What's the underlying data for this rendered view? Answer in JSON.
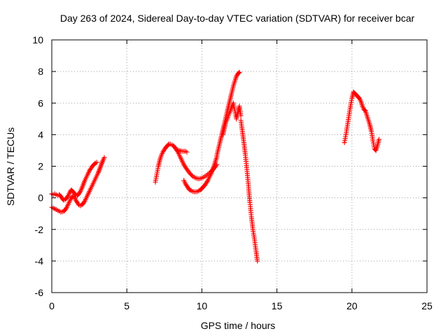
{
  "chart_data": {
    "type": "scatter",
    "title": "Day 263 of 2024, Sidereal Day-to-day VTEC variation (SDTVAR) for receiver bcar",
    "xlabel": "GPS time / hours",
    "ylabel": "SDTVAR / TECUs",
    "xlim": [
      0,
      25
    ],
    "ylim": [
      -6,
      10
    ],
    "xticks": [
      0,
      5,
      10,
      15,
      20,
      25
    ],
    "yticks": [
      -6,
      -4,
      -2,
      0,
      2,
      4,
      6,
      8,
      10
    ],
    "grid": true,
    "marker": "+",
    "color": "#ff0000",
    "series": [
      {
        "name": "segment-1-upper",
        "x": [
          0.0,
          0.1,
          0.2,
          0.3,
          0.4,
          0.5,
          0.6,
          0.7,
          0.8,
          0.9,
          1.0,
          1.1,
          1.2,
          1.3,
          1.4,
          1.5,
          1.6,
          1.7,
          1.8,
          1.9,
          2.0,
          2.1,
          2.2,
          2.3,
          2.4,
          2.5,
          2.6,
          2.7,
          2.8,
          2.9,
          3.0
        ],
        "y": [
          0.25,
          0.2,
          0.25,
          0.2,
          0.15,
          0.2,
          0.1,
          -0.05,
          -0.15,
          -0.1,
          0.0,
          0.15,
          0.35,
          0.5,
          0.4,
          0.3,
          0.15,
          0.15,
          0.25,
          0.4,
          0.6,
          0.85,
          1.1,
          1.3,
          1.5,
          1.7,
          1.85,
          2.0,
          2.1,
          2.2,
          2.25
        ]
      },
      {
        "name": "segment-1-lower",
        "x": [
          0.0,
          0.1,
          0.2,
          0.3,
          0.4,
          0.5,
          0.6,
          0.7,
          0.8,
          0.9,
          1.0,
          1.1,
          1.2,
          1.3,
          1.4,
          1.5,
          1.6,
          1.7,
          1.8,
          1.9,
          2.0,
          2.1,
          2.2,
          2.3,
          2.4,
          2.5,
          2.6,
          2.7,
          2.8,
          2.9,
          3.0,
          3.1,
          3.2,
          3.3,
          3.4,
          3.5
        ],
        "y": [
          -0.6,
          -0.65,
          -0.7,
          -0.75,
          -0.8,
          -0.85,
          -0.9,
          -0.88,
          -0.85,
          -0.75,
          -0.6,
          -0.4,
          -0.2,
          0.0,
          0.1,
          0.05,
          -0.15,
          -0.3,
          -0.45,
          -0.5,
          -0.45,
          -0.35,
          -0.2,
          0.0,
          0.2,
          0.4,
          0.6,
          0.8,
          1.0,
          1.2,
          1.4,
          1.6,
          1.85,
          2.1,
          2.35,
          2.55
        ]
      },
      {
        "name": "segment-2-upper",
        "x": [
          6.9,
          7.0,
          7.1,
          7.2,
          7.3,
          7.4,
          7.5,
          7.6,
          7.7,
          7.8,
          7.9,
          8.0,
          8.1,
          8.2,
          8.3,
          8.4,
          8.5,
          8.6,
          8.7,
          8.8,
          8.9,
          9.0,
          9.2,
          9.4,
          9.6,
          9.8,
          10.0,
          10.2,
          10.4,
          10.6,
          10.8,
          11.0
        ],
        "y": [
          1.0,
          1.5,
          2.0,
          2.4,
          2.7,
          2.9,
          3.05,
          3.2,
          3.3,
          3.4,
          3.4,
          3.35,
          3.3,
          3.2,
          3.05,
          2.9,
          2.7,
          2.5,
          2.3,
          2.1,
          1.95,
          1.8,
          1.55,
          1.35,
          1.25,
          1.2,
          1.25,
          1.35,
          1.5,
          1.65,
          1.85,
          2.1
        ]
      },
      {
        "name": "segment-2-tail",
        "x": [
          8.3,
          8.5,
          8.7,
          8.9,
          9.0
        ],
        "y": [
          3.05,
          3.0,
          2.95,
          2.95,
          2.9
        ]
      },
      {
        "name": "segment-2-lower",
        "x": [
          8.8,
          8.9,
          9.0,
          9.1,
          9.2,
          9.3,
          9.4,
          9.5,
          9.6,
          9.7,
          9.8,
          9.9,
          10.0,
          10.1,
          10.2,
          10.3,
          10.4,
          10.5,
          10.6,
          10.7,
          10.8,
          10.9,
          11.0
        ],
        "y": [
          1.1,
          0.9,
          0.75,
          0.6,
          0.5,
          0.45,
          0.4,
          0.38,
          0.38,
          0.4,
          0.45,
          0.5,
          0.6,
          0.7,
          0.8,
          0.95,
          1.1,
          1.3,
          1.5,
          1.75,
          2.0,
          2.3,
          2.6
        ]
      },
      {
        "name": "segment-2-rise",
        "x": [
          11.0,
          11.1,
          11.2,
          11.3,
          11.4,
          11.5,
          11.6,
          11.7,
          11.8,
          11.9,
          12.0,
          12.1,
          12.2,
          12.3,
          12.4,
          12.5
        ],
        "y": [
          2.7,
          3.1,
          3.5,
          3.9,
          4.3,
          4.7,
          5.1,
          5.5,
          5.9,
          6.3,
          6.7,
          7.1,
          7.4,
          7.7,
          7.85,
          7.95
        ]
      },
      {
        "name": "segment-2-peak-band",
        "x": [
          11.4,
          11.5,
          11.6,
          11.7,
          11.8,
          11.9,
          12.0,
          12.1,
          12.2,
          12.3,
          12.4,
          12.5,
          12.6
        ],
        "y": [
          4.0,
          4.4,
          4.8,
          5.0,
          5.3,
          5.5,
          5.8,
          6.0,
          5.5,
          5.0,
          5.4,
          5.8,
          5.2
        ]
      },
      {
        "name": "segment-2-fall",
        "x": [
          12.6,
          12.7,
          12.8,
          12.9,
          13.0,
          13.1,
          13.2,
          13.3,
          13.4,
          13.5,
          13.6,
          13.7
        ],
        "y": [
          4.9,
          4.2,
          3.5,
          2.7,
          1.8,
          0.8,
          -0.3,
          -1.2,
          -2.0,
          -2.6,
          -3.3,
          -4.0
        ]
      },
      {
        "name": "segment-3",
        "x": [
          19.5,
          19.6,
          19.7,
          19.8,
          19.9,
          20.0,
          20.1,
          20.2,
          20.3,
          20.4,
          20.5,
          20.6,
          20.7,
          20.8,
          20.9,
          21.0,
          21.1,
          21.2,
          21.3,
          21.4,
          21.5,
          21.6,
          21.7,
          21.8
        ],
        "y": [
          3.5,
          4.0,
          4.6,
          5.2,
          5.8,
          6.3,
          6.7,
          6.6,
          6.5,
          6.4,
          6.3,
          6.1,
          5.8,
          5.6,
          5.5,
          5.2,
          4.9,
          4.6,
          4.2,
          3.6,
          3.1,
          3.0,
          3.3,
          3.7
        ]
      }
    ]
  }
}
